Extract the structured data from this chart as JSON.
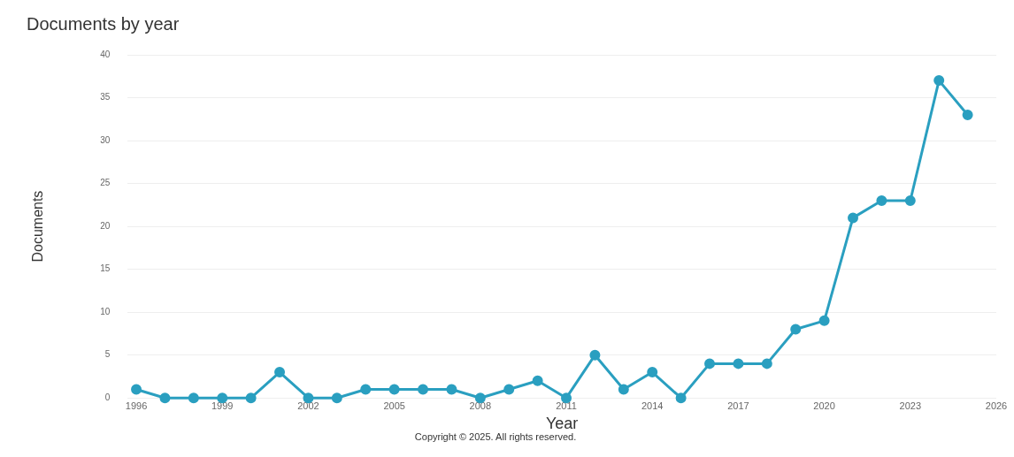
{
  "chart_data": {
    "type": "line",
    "title": "Documents by year",
    "xlabel": "Year",
    "ylabel": "Documents",
    "x": [
      1996,
      1997,
      1998,
      1999,
      2000,
      2001,
      2002,
      2003,
      2004,
      2005,
      2006,
      2007,
      2008,
      2009,
      2010,
      2011,
      2012,
      2013,
      2014,
      2015,
      2016,
      2017,
      2018,
      2019,
      2020,
      2021,
      2022,
      2023,
      2024,
      2025
    ],
    "series": [
      {
        "color": "#2a9fc0",
        "values": [
          1,
          0,
          0,
          0,
          0,
          3,
          0,
          0,
          1,
          1,
          1,
          1,
          0,
          1,
          2,
          0,
          5,
          1,
          3,
          0,
          4,
          4,
          4,
          8,
          9,
          21,
          23,
          23,
          37,
          33
        ]
      }
    ],
    "xlim": [
      1995.7,
      2026
    ],
    "xticks": [
      1996,
      1999,
      2002,
      2005,
      2008,
      2011,
      2014,
      2017,
      2020,
      2023,
      2026
    ],
    "ylim": [
      0,
      40
    ],
    "yticks": [
      0,
      5,
      10,
      15,
      20,
      25,
      30,
      35,
      40
    ],
    "grid": "y",
    "marker": "circle",
    "line_style": "solid",
    "legend": false,
    "annotations": [
      "Copyright © 2025. All rights reserved."
    ]
  }
}
